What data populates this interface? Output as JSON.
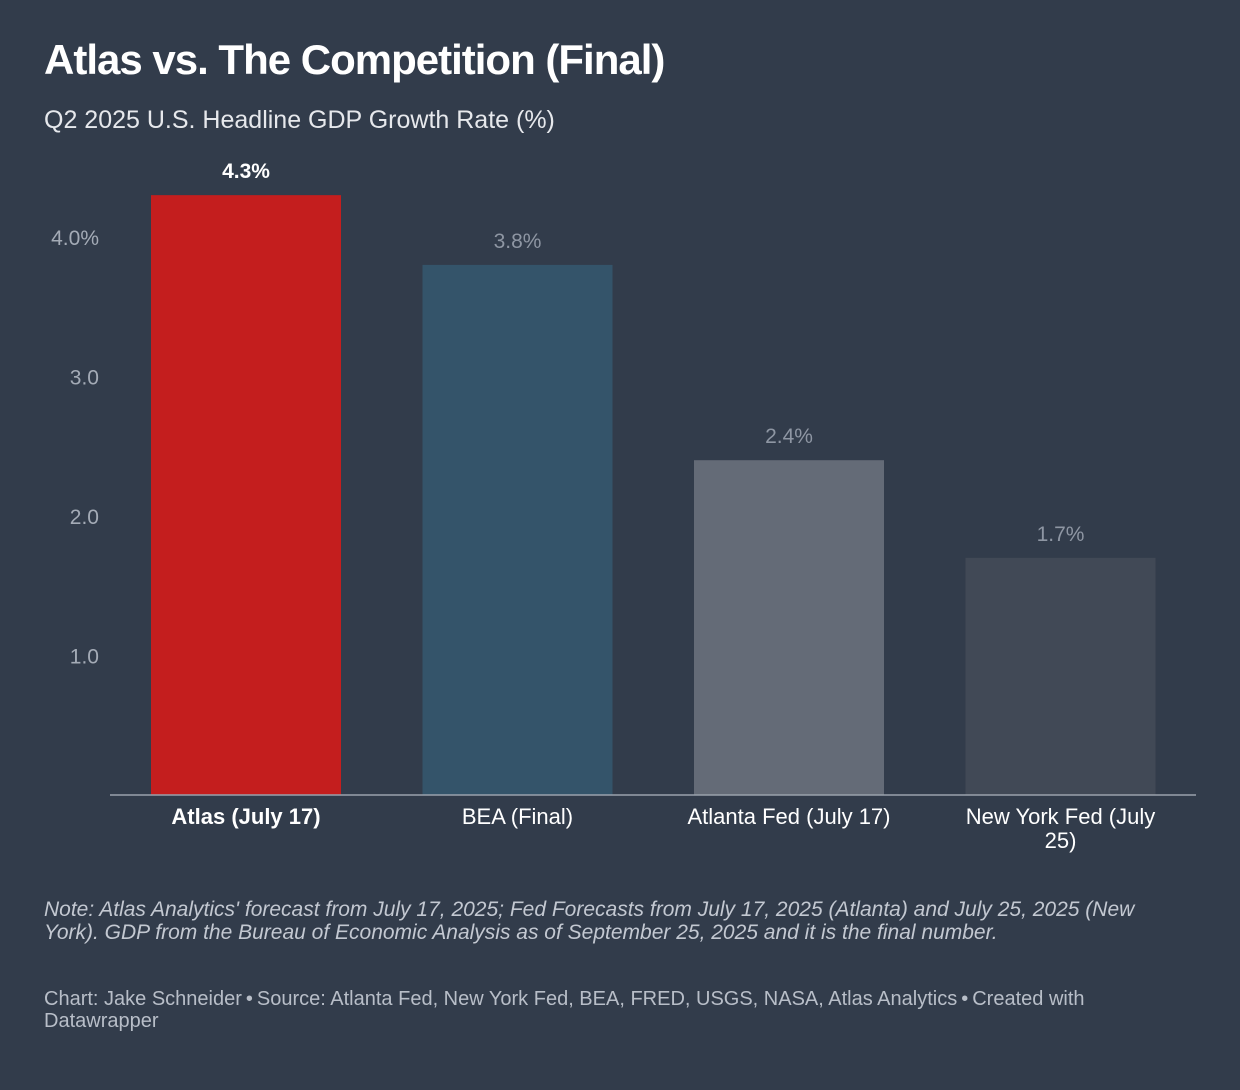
{
  "chart_data": {
    "type": "bar",
    "title": "Atlas vs. The Competition (Final)",
    "subtitle": "Q2 2025 U.S. Headline GDP Growth Rate (%)",
    "categories": [
      "Atlas (July 17)",
      "BEA (Final)",
      "Atlanta Fed (July 17)",
      "New York Fed (July 25)"
    ],
    "category_label_lines": [
      [
        "Atlas (July 17)"
      ],
      [
        "BEA (Final)"
      ],
      [
        "Atlanta Fed (July 17)"
      ],
      [
        "New York Fed (July",
        "25)"
      ]
    ],
    "values": [
      4.3,
      3.8,
      2.4,
      1.7
    ],
    "value_labels": [
      "4.3%",
      "3.8%",
      "2.4%",
      "1.7%"
    ],
    "highlight_index": 0,
    "bar_colors": [
      "#c41e1e",
      "#34546a",
      "#646b77",
      "#414956"
    ],
    "value_label_colors": [
      "#ffffff",
      "#8e96a3",
      "#8e96a3",
      "#8e96a3"
    ],
    "yticks": [
      1.0,
      2.0,
      3.0,
      4.0
    ],
    "ytick_labels": [
      "1.0",
      "2.0",
      "3.0",
      "4.0%"
    ],
    "ylim": [
      0,
      4.3
    ],
    "xlabel": "",
    "ylabel": "",
    "grid": false
  },
  "footer": {
    "note": "Note: Atlas Analytics' forecast from July 17, 2025; Fed Forecasts from July 17, 2025 (Atlanta) and July 25, 2025 (New York). GDP from the Bureau of Economic Analysis as of September 25, 2025 and it is the final number.",
    "chart_by": "Chart: Jake Schneider",
    "source": "Source: Atlanta Fed, New York Fed, BEA, FRED, USGS, NASA, Atlas Analytics",
    "created_with": "Created with Datawrapper",
    "separator": "•"
  },
  "colors": {
    "background": "#323c4b",
    "axis_line": "#9aa1ac",
    "tick_label": "#a4abb6"
  }
}
